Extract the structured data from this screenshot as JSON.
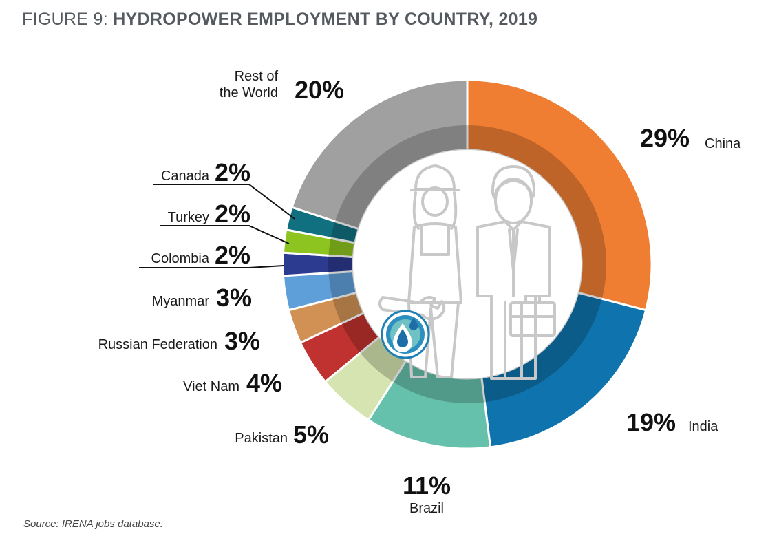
{
  "title": {
    "prefix": "FIGURE 9:",
    "main": "HYDROPOWER EMPLOYMENT BY COUNTRY, 2019"
  },
  "source": "Source: IRENA jobs database.",
  "chart_data": {
    "type": "pie",
    "title": "FIGURE 9: HYDROPOWER EMPLOYMENT BY COUNTRY, 2019",
    "unit": "%",
    "slices": [
      {
        "name": "China",
        "value": 29,
        "label": "29%",
        "color": "#ef7d32"
      },
      {
        "name": "India",
        "value": 19,
        "label": "19%",
        "color": "#0f74ad"
      },
      {
        "name": "Brazil",
        "value": 11,
        "label": "11%",
        "color": "#66c1ac"
      },
      {
        "name": "Pakistan",
        "value": 5,
        "label": "5%",
        "color": "#d5e4b0"
      },
      {
        "name": "Viet Nam",
        "value": 4,
        "label": "4%",
        "color": "#c0322f"
      },
      {
        "name": "Russian Federation",
        "value": 3,
        "label": "3%",
        "color": "#d19155"
      },
      {
        "name": "Myanmar",
        "value": 3,
        "label": "3%",
        "color": "#5f9fd9"
      },
      {
        "name": "Colombia",
        "value": 2,
        "label": "2%",
        "color": "#2c3a8f"
      },
      {
        "name": "Turkey",
        "value": 2,
        "label": "2%",
        "color": "#8dc41f"
      },
      {
        "name": "Canada",
        "value": 2,
        "label": "2%",
        "color": "#11707f"
      },
      {
        "name": "Rest of the World",
        "value": 20,
        "label": "20%",
        "color": "#a0a0a0"
      }
    ]
  },
  "labels": {
    "rest_line1": "Rest of",
    "rest_line2": "the World"
  },
  "icons": {
    "center": "workers-icon",
    "badge": "water-drop-icon"
  }
}
